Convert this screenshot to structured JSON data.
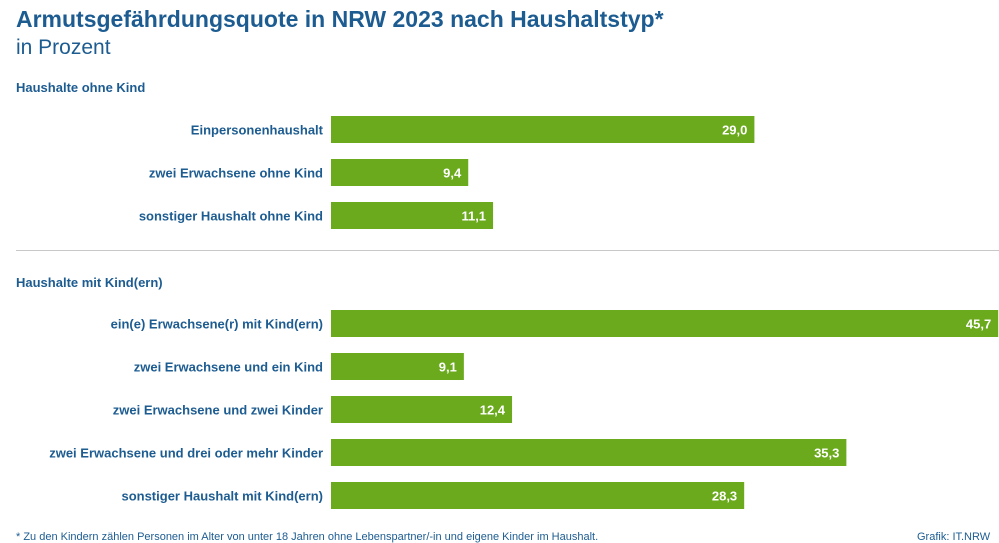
{
  "title": "Armutsgefährdungsquote in NRW 2023 nach Haushaltstyp*",
  "subtitle": "in Prozent",
  "footnote": "* Zu den Kindern zählen Personen im Alter von unter 18 Jahren ohne Lebenspartner/-in und eigene Kinder im Haushalt.",
  "source": "Grafik: IT.NRW",
  "colors": {
    "bar": "#6aaa1c",
    "text": "#1d5c91",
    "value_label": "#ffffff"
  },
  "chart_data": {
    "type": "bar",
    "orientation": "horizontal",
    "title": "Armutsgefährdungsquote in NRW 2023 nach Haushaltstyp*",
    "subtitle": "in Prozent",
    "grid": false,
    "groups": [
      {
        "name": "Haushalte ohne Kind",
        "categories": [
          "Einpersonenhaushalt",
          "zwei Erwachsene ohne Kind",
          "sonstiger Haushalt ohne Kind"
        ],
        "values": [
          29.0,
          9.4,
          11.1
        ],
        "value_labels": [
          "29,0",
          "9,4",
          "11,1"
        ]
      },
      {
        "name": "Haushalte mit Kind(ern)",
        "categories": [
          "ein(e) Erwachsene(r) mit Kind(ern)",
          "zwei Erwachsene und ein Kind",
          "zwei Erwachsene und zwei Kinder",
          "zwei Erwachsene und drei oder mehr Kinder",
          "sonstiger Haushalt mit Kind(ern)"
        ],
        "values": [
          45.7,
          9.1,
          12.4,
          35.3,
          28.3
        ],
        "value_labels": [
          "45,7",
          "9,1",
          "12,4",
          "35,3",
          "28,3"
        ]
      }
    ]
  }
}
